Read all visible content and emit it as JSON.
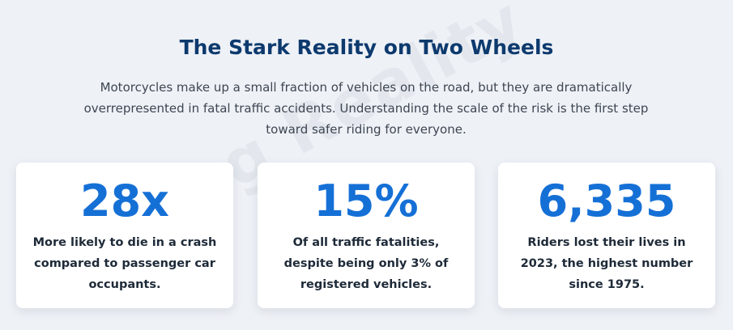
{
  "section": {
    "title": "The Stark Reality on Two Wheels",
    "intro": "Motorcycles make up a small fraction of vehicles on the road, but they are dramatically overrepresented in fatal traffic accidents. Understanding the scale of the risk is the first step toward safer riding for everyone.",
    "watermark": "iving Reality"
  },
  "stats": [
    {
      "value": "28x",
      "description": "More likely to die in a crash compared to passenger car occupants."
    },
    {
      "value": "15%",
      "description": "Of all traffic fatalities, despite being only 3% of registered vehicles."
    },
    {
      "value": "6,335",
      "description": "Riders lost their lives in 2023, the highest number since 1975."
    }
  ],
  "colors": {
    "background": "#eef1f6",
    "title": "#0d3a6e",
    "stat_accent": "#1570d6",
    "card": "#ffffff"
  }
}
